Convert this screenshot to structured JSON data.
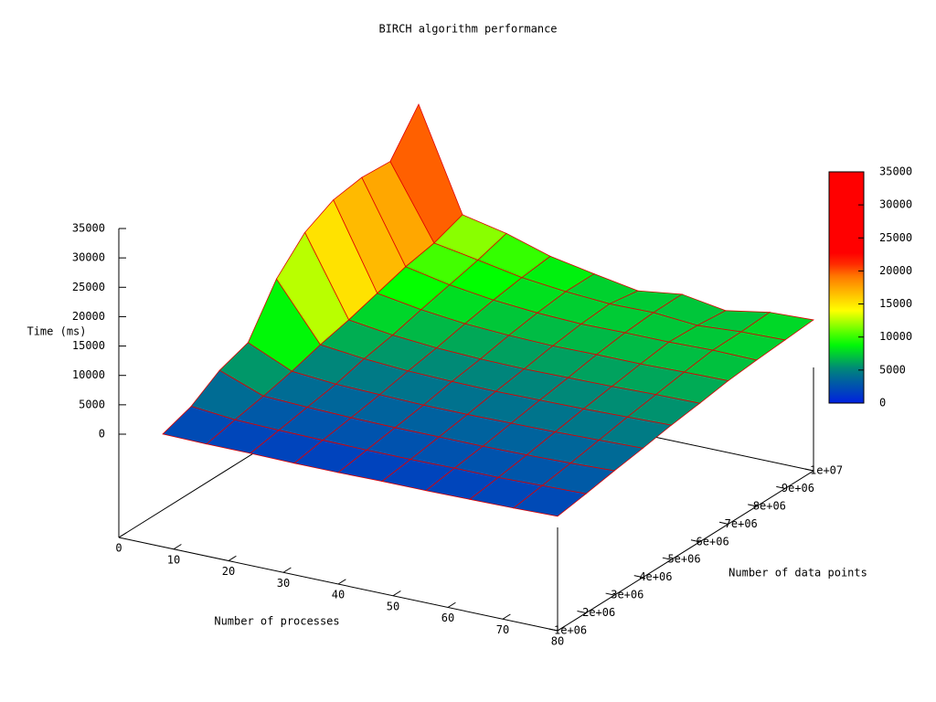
{
  "chart_data": {
    "type": "surface",
    "title": "BIRCH algorithm performance",
    "x_label": "Number of processes",
    "y_label": "Number of data points",
    "z_label": "Time (ms)",
    "x": [
      8,
      16,
      24,
      32,
      40,
      48,
      56,
      64,
      72,
      80
    ],
    "y": [
      1000000,
      2000000,
      3000000,
      4000000,
      5000000,
      6000000,
      7000000,
      8000000,
      9000000,
      10000000
    ],
    "z": [
      [
        1600,
        1500,
        1500,
        1400,
        1400,
        1500,
        1500,
        1600,
        1700,
        1900
      ],
      [
        3300,
        2600,
        2400,
        2300,
        2200,
        2200,
        2300,
        2300,
        2500,
        2700
      ],
      [
        6400,
        3600,
        3300,
        3100,
        3000,
        3000,
        3000,
        3100,
        3300,
        3600
      ],
      [
        8100,
        4800,
        4200,
        4000,
        3800,
        3800,
        3900,
        4000,
        4200,
        4400
      ],
      [
        15900,
        6300,
        5500,
        5000,
        4800,
        4700,
        4800,
        4900,
        5100,
        5300
      ],
      [
        20800,
        7500,
        6500,
        5900,
        5600,
        5500,
        5600,
        5700,
        5900,
        6000
      ],
      [
        23300,
        9000,
        7800,
        7000,
        6600,
        6400,
        6500,
        6500,
        6700,
        6800
      ],
      [
        24100,
        10500,
        9000,
        8000,
        7400,
        7100,
        7200,
        7200,
        7400,
        7300
      ],
      [
        23800,
        11500,
        10200,
        8800,
        8000,
        7500,
        7600,
        7000,
        7500,
        7700
      ],
      [
        30500,
        13300,
        11700,
        9400,
        8000,
        6700,
        7700,
        6500,
        7800,
        8100
      ]
    ],
    "xlim": [
      0,
      80
    ],
    "xticks": [
      0,
      10,
      20,
      30,
      40,
      50,
      60,
      70,
      80
    ],
    "ylim": [
      1000000,
      10000000
    ],
    "yticks": [
      {
        "value": 1000000,
        "label": "1e+06"
      },
      {
        "value": 2000000,
        "label": "2e+06"
      },
      {
        "value": 3000000,
        "label": "3e+06"
      },
      {
        "value": 4000000,
        "label": "4e+06"
      },
      {
        "value": 5000000,
        "label": "5e+06"
      },
      {
        "value": 6000000,
        "label": "6e+06"
      },
      {
        "value": 7000000,
        "label": "7e+06"
      },
      {
        "value": 8000000,
        "label": "8e+06"
      },
      {
        "value": 9000000,
        "label": "9e+06"
      },
      {
        "value": 10000000,
        "label": "1e+07"
      }
    ],
    "zlim": [
      0,
      35000
    ],
    "zticks": [
      0,
      5000,
      10000,
      15000,
      20000,
      25000,
      30000,
      35000
    ],
    "cblim": [
      0,
      35000
    ],
    "cbticks": [
      0,
      5000,
      10000,
      15000,
      20000,
      25000,
      30000,
      35000
    ],
    "colorbar": true
  }
}
